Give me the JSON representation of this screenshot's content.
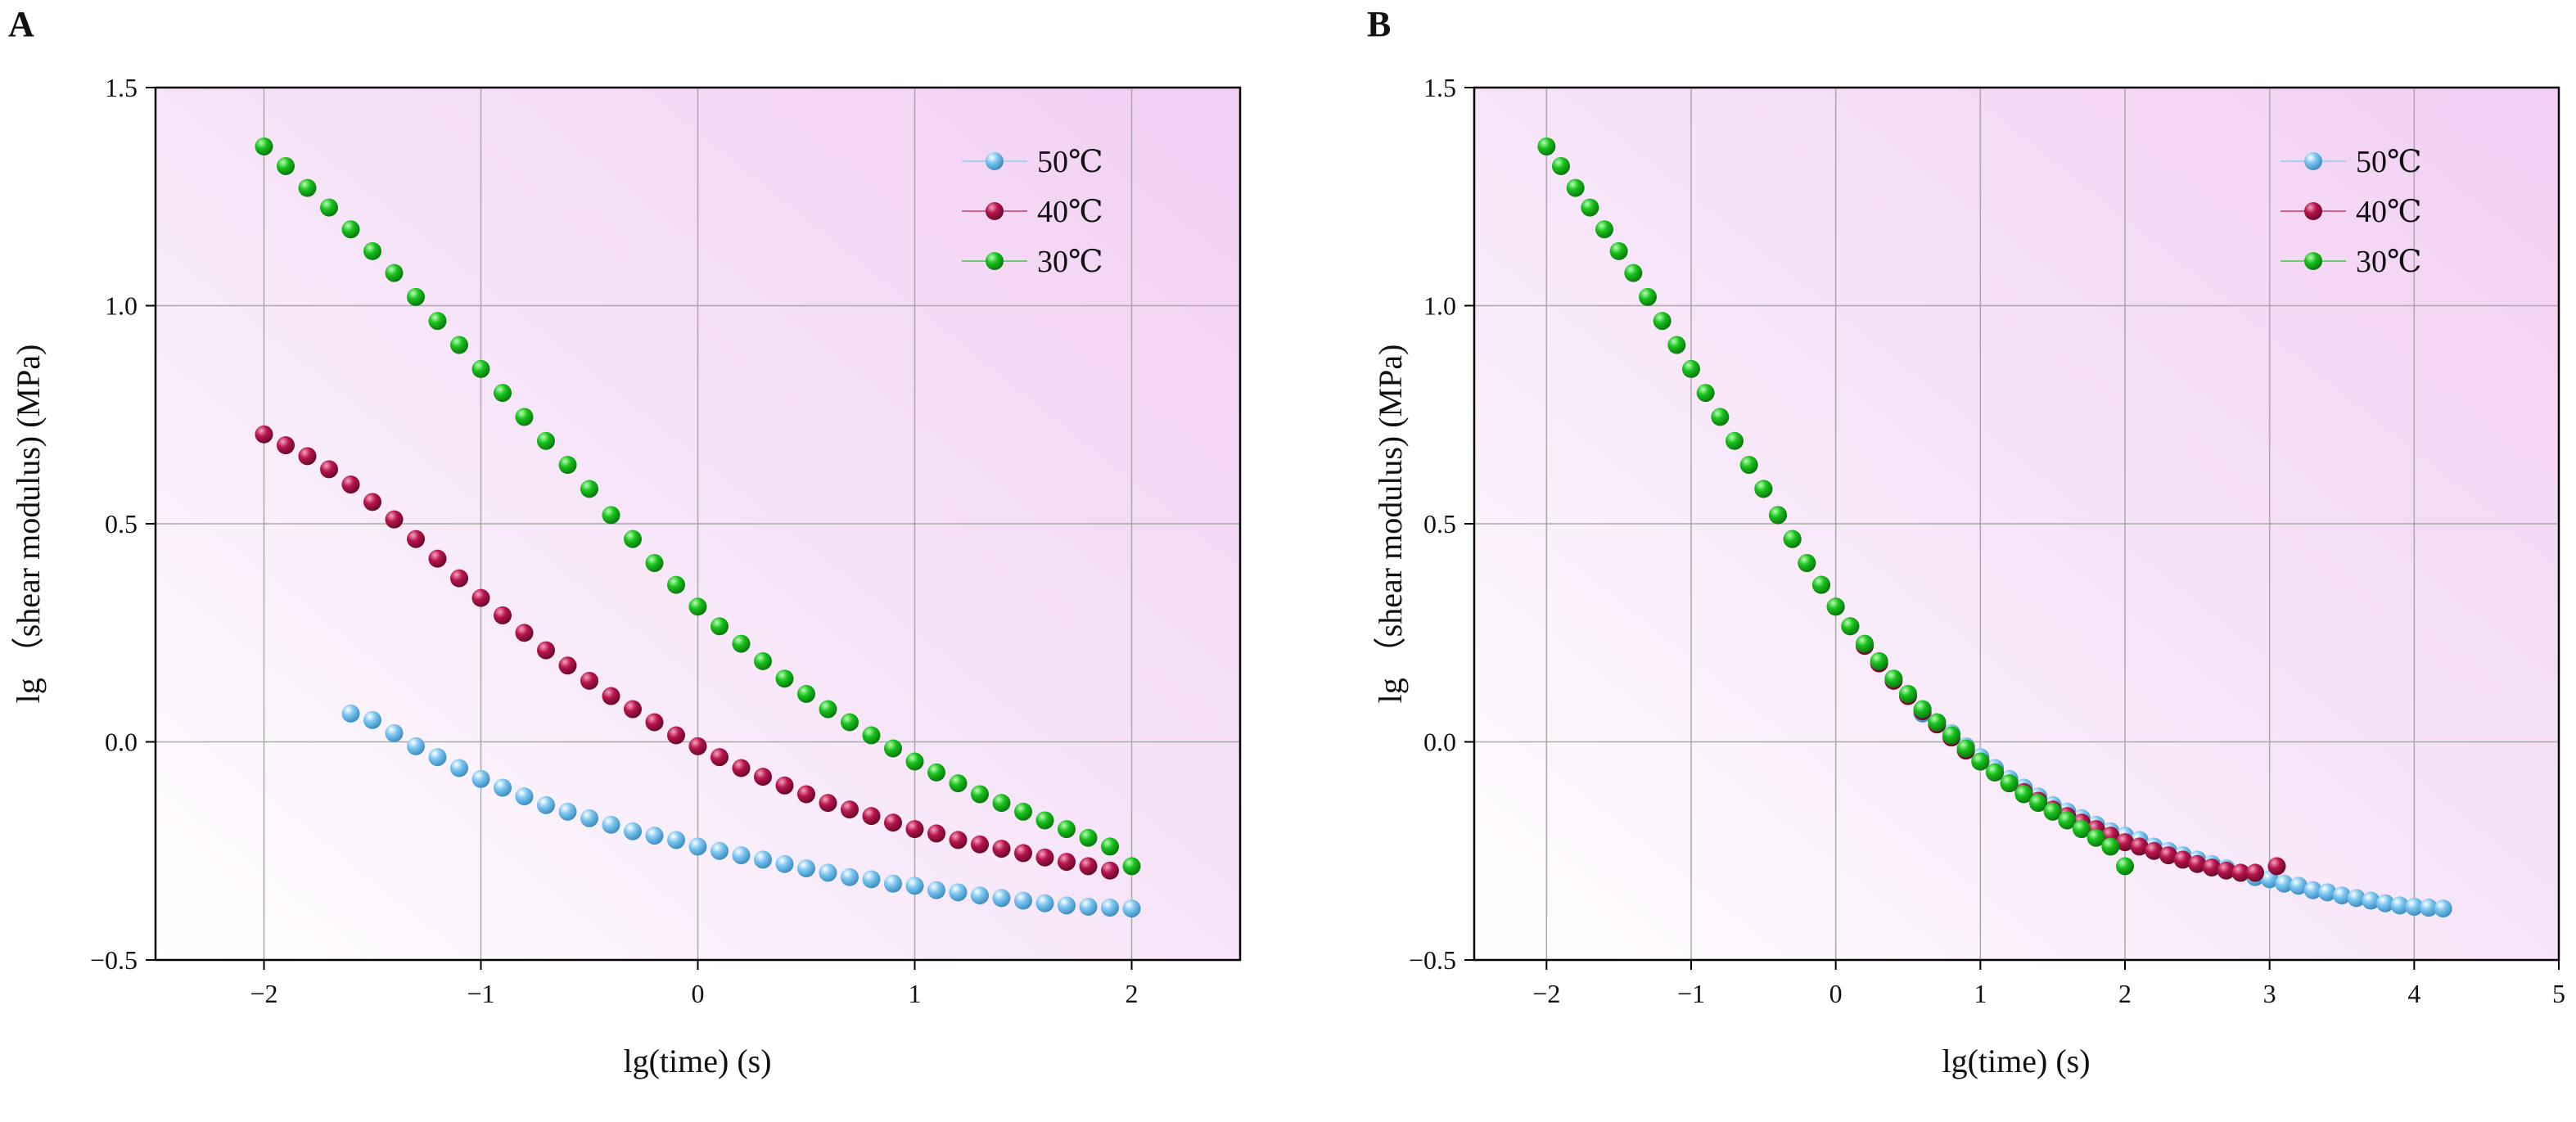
{
  "chart_data": [
    {
      "panel_label": "A",
      "type": "scatter",
      "xlabel": "lg(time) (s)",
      "ylabel": "lg （shear modulus) (MPa)",
      "xlim": [
        -2.5,
        2.5
      ],
      "ylim": [
        -0.5,
        1.5
      ],
      "x_ticks": [
        -2,
        -1,
        0,
        1,
        2
      ],
      "x_tick_labels": [
        "−2",
        "−1",
        "0",
        "1",
        "2"
      ],
      "y_ticks": [
        -0.5,
        0.0,
        0.5,
        1.0,
        1.5
      ],
      "y_tick_labels": [
        "−0.5",
        "0.0",
        "0.5",
        "1.0",
        "1.5"
      ],
      "grid": true,
      "legend_position": "top-right",
      "series": [
        {
          "name": "50℃",
          "color": "#7cc6f2",
          "x": [
            -1.6,
            -1.5,
            -1.4,
            -1.3,
            -1.2,
            -1.1,
            -1.0,
            -0.9,
            -0.8,
            -0.7,
            -0.6,
            -0.5,
            -0.4,
            -0.3,
            -0.2,
            -0.1,
            0.0,
            0.1,
            0.2,
            0.3,
            0.4,
            0.5,
            0.6,
            0.7,
            0.8,
            0.9,
            1.0,
            1.1,
            1.2,
            1.3,
            1.4,
            1.5,
            1.6,
            1.7,
            1.8,
            1.9,
            2.0
          ],
          "y": [
            0.065,
            0.05,
            0.02,
            -0.01,
            -0.035,
            -0.06,
            -0.085,
            -0.105,
            -0.125,
            -0.145,
            -0.16,
            -0.175,
            -0.19,
            -0.205,
            -0.215,
            -0.225,
            -0.24,
            -0.25,
            -0.26,
            -0.27,
            -0.28,
            -0.29,
            -0.3,
            -0.31,
            -0.315,
            -0.325,
            -0.33,
            -0.34,
            -0.345,
            -0.352,
            -0.358,
            -0.364,
            -0.37,
            -0.375,
            -0.378,
            -0.38,
            -0.382
          ]
        },
        {
          "name": "40℃",
          "color": "#b8154d",
          "x": [
            -2.0,
            -1.9,
            -1.8,
            -1.7,
            -1.6,
            -1.5,
            -1.4,
            -1.3,
            -1.2,
            -1.1,
            -1.0,
            -0.9,
            -0.8,
            -0.7,
            -0.6,
            -0.5,
            -0.4,
            -0.3,
            -0.2,
            -0.1,
            0.0,
            0.1,
            0.2,
            0.3,
            0.4,
            0.5,
            0.6,
            0.7,
            0.8,
            0.9,
            1.0,
            1.1,
            1.2,
            1.3,
            1.4,
            1.5,
            1.6,
            1.7,
            1.8,
            1.9
          ],
          "y": [
            0.705,
            0.68,
            0.655,
            0.625,
            0.59,
            0.55,
            0.51,
            0.465,
            0.42,
            0.375,
            0.33,
            0.29,
            0.25,
            0.21,
            0.175,
            0.14,
            0.105,
            0.075,
            0.045,
            0.015,
            -0.01,
            -0.035,
            -0.06,
            -0.08,
            -0.1,
            -0.12,
            -0.14,
            -0.155,
            -0.17,
            -0.185,
            -0.2,
            -0.21,
            -0.225,
            -0.235,
            -0.245,
            -0.255,
            -0.265,
            -0.275,
            -0.285,
            -0.295
          ]
        },
        {
          "name": "30℃",
          "color": "#19c21d",
          "x": [
            -2.0,
            -1.9,
            -1.8,
            -1.7,
            -1.6,
            -1.5,
            -1.4,
            -1.3,
            -1.2,
            -1.1,
            -1.0,
            -0.9,
            -0.8,
            -0.7,
            -0.6,
            -0.5,
            -0.4,
            -0.3,
            -0.2,
            -0.1,
            0.0,
            0.1,
            0.2,
            0.3,
            0.4,
            0.5,
            0.6,
            0.7,
            0.8,
            0.9,
            1.0,
            1.1,
            1.2,
            1.3,
            1.4,
            1.5,
            1.6,
            1.7,
            1.8,
            1.9,
            2.0
          ],
          "y": [
            1.365,
            1.32,
            1.27,
            1.225,
            1.175,
            1.125,
            1.075,
            1.02,
            0.965,
            0.91,
            0.855,
            0.8,
            0.745,
            0.69,
            0.635,
            0.58,
            0.52,
            0.465,
            0.41,
            0.36,
            0.31,
            0.265,
            0.225,
            0.185,
            0.145,
            0.11,
            0.075,
            0.045,
            0.015,
            -0.015,
            -0.045,
            -0.07,
            -0.095,
            -0.12,
            -0.14,
            -0.16,
            -0.18,
            -0.2,
            -0.22,
            -0.24,
            -0.285
          ]
        }
      ]
    },
    {
      "panel_label": "B",
      "type": "scatter",
      "xlabel": "lg(time) (s)",
      "ylabel": "lg （shear modulus) (MPa)",
      "xlim": [
        -2.5,
        5
      ],
      "ylim": [
        -0.5,
        1.5
      ],
      "x_ticks": [
        -2,
        -1,
        0,
        1,
        2,
        3,
        4,
        5
      ],
      "x_tick_labels": [
        "−2",
        "−1",
        "0",
        "1",
        "2",
        "3",
        "4",
        "5"
      ],
      "y_ticks": [
        -0.5,
        0.0,
        0.5,
        1.0,
        1.5
      ],
      "y_tick_labels": [
        "−0.5",
        "0.0",
        "0.5",
        "1.0",
        "1.5"
      ],
      "grid": true,
      "legend_position": "top-right",
      "series": [
        {
          "name": "50℃",
          "color": "#7cc6f2",
          "x": [
            0.6,
            0.7,
            0.8,
            0.9,
            1.0,
            1.1,
            1.2,
            1.3,
            1.4,
            1.5,
            1.6,
            1.7,
            1.8,
            1.9,
            2.0,
            2.1,
            2.2,
            2.3,
            2.4,
            2.5,
            2.6,
            2.7,
            2.8,
            2.9,
            3.0,
            3.1,
            3.2,
            3.3,
            3.4,
            3.5,
            3.6,
            3.7,
            3.8,
            3.9,
            4.0,
            4.1,
            4.2
          ],
          "y": [
            0.065,
            0.045,
            0.02,
            -0.01,
            -0.035,
            -0.06,
            -0.085,
            -0.105,
            -0.125,
            -0.145,
            -0.16,
            -0.175,
            -0.19,
            -0.205,
            -0.215,
            -0.225,
            -0.24,
            -0.25,
            -0.26,
            -0.27,
            -0.28,
            -0.29,
            -0.3,
            -0.31,
            -0.315,
            -0.325,
            -0.33,
            -0.34,
            -0.345,
            -0.352,
            -0.358,
            -0.364,
            -0.37,
            -0.375,
            -0.378,
            -0.38,
            -0.382
          ]
        },
        {
          "name": "40℃",
          "color": "#b8154d",
          "x": [
            -0.5,
            -0.4,
            -0.3,
            -0.2,
            -0.1,
            0.0,
            0.1,
            0.2,
            0.3,
            0.4,
            0.5,
            0.6,
            0.7,
            0.8,
            0.9,
            1.0,
            1.1,
            1.2,
            1.3,
            1.4,
            1.5,
            1.6,
            1.7,
            1.8,
            1.9,
            2.0,
            2.1,
            2.2,
            2.3,
            2.4,
            2.5,
            2.6,
            2.7,
            2.8,
            2.9,
            3.05
          ],
          "y": [
            0.58,
            0.52,
            0.465,
            0.41,
            0.36,
            0.31,
            0.265,
            0.22,
            0.18,
            0.14,
            0.105,
            0.07,
            0.04,
            0.01,
            -0.02,
            -0.045,
            -0.07,
            -0.095,
            -0.115,
            -0.135,
            -0.155,
            -0.17,
            -0.185,
            -0.2,
            -0.215,
            -0.23,
            -0.24,
            -0.25,
            -0.26,
            -0.27,
            -0.28,
            -0.288,
            -0.295,
            -0.3,
            -0.3,
            -0.285
          ]
        },
        {
          "name": "30℃",
          "color": "#19c21d",
          "x": [
            -2.0,
            -1.9,
            -1.8,
            -1.7,
            -1.6,
            -1.5,
            -1.4,
            -1.3,
            -1.2,
            -1.1,
            -1.0,
            -0.9,
            -0.8,
            -0.7,
            -0.6,
            -0.5,
            -0.4,
            -0.3,
            -0.2,
            -0.1,
            0.0,
            0.1,
            0.2,
            0.3,
            0.4,
            0.5,
            0.6,
            0.7,
            0.8,
            0.9,
            1.0,
            1.1,
            1.2,
            1.3,
            1.4,
            1.5,
            1.6,
            1.7,
            1.8,
            1.9,
            2.0
          ],
          "y": [
            1.365,
            1.32,
            1.27,
            1.225,
            1.175,
            1.125,
            1.075,
            1.02,
            0.965,
            0.91,
            0.855,
            0.8,
            0.745,
            0.69,
            0.635,
            0.58,
            0.52,
            0.465,
            0.41,
            0.36,
            0.31,
            0.265,
            0.225,
            0.185,
            0.145,
            0.11,
            0.075,
            0.045,
            0.015,
            -0.015,
            -0.045,
            -0.07,
            -0.095,
            -0.12,
            -0.14,
            -0.16,
            -0.18,
            -0.2,
            -0.22,
            -0.24,
            -0.285
          ]
        }
      ]
    }
  ]
}
